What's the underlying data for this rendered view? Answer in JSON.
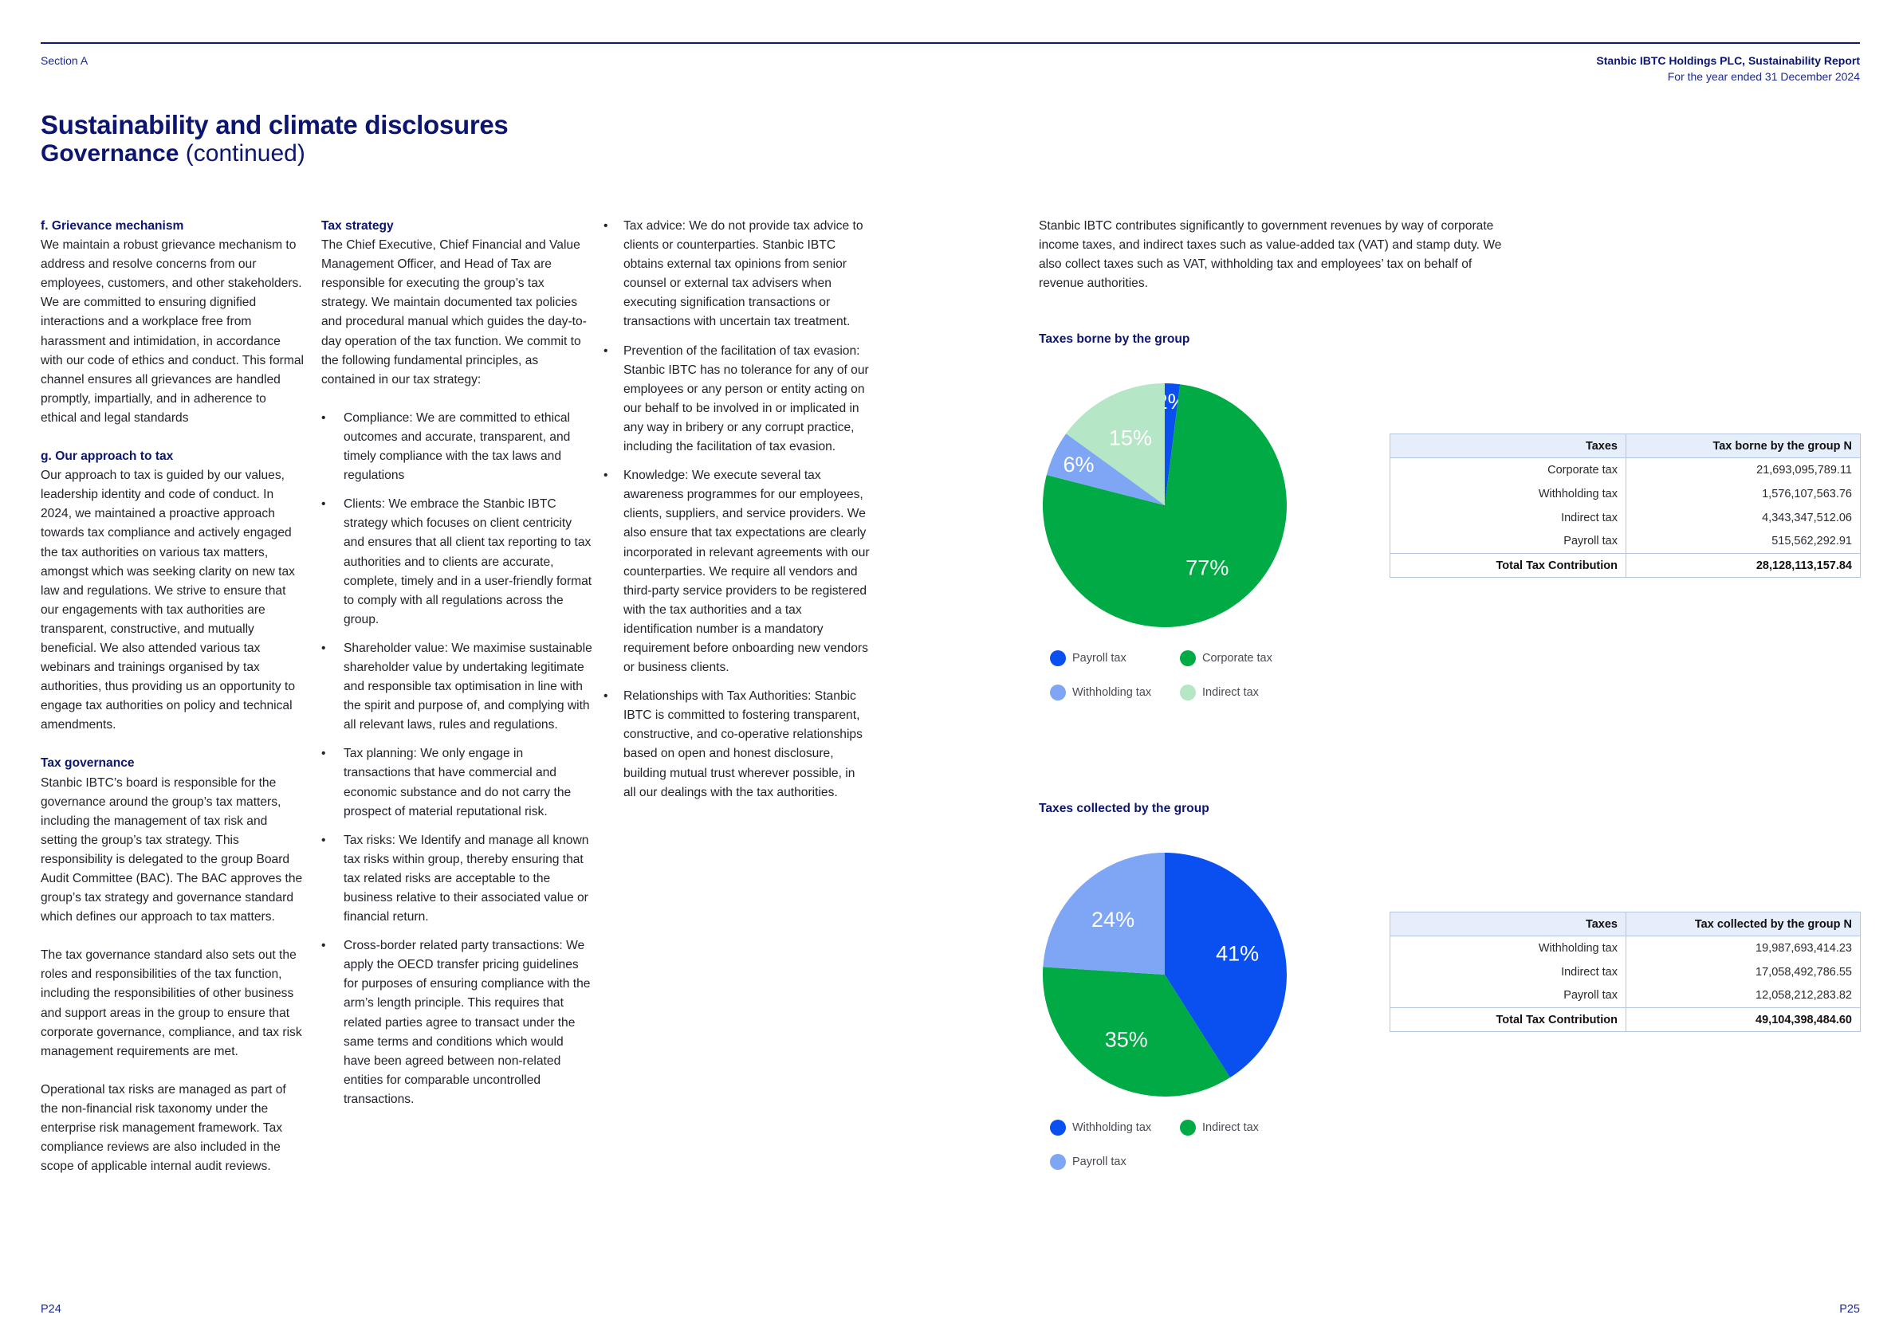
{
  "header": {
    "section": "Section A",
    "report_title": "Stanbic IBTC Holdings PLC, Sustainability Report",
    "report_period": "For the year ended 31 December 2024"
  },
  "title": {
    "main": "Sustainability and climate disclosures",
    "sub_bold": "Governance",
    "sub_light": "(continued)"
  },
  "col1": {
    "grievance_heading": "f. Grievance mechanism",
    "grievance_text": "We maintain a robust grievance mechanism to address and resolve concerns from our employees, customers, and other stakeholders. We are committed to ensuring dignified interactions and a workplace free from harassment and intimidation, in accordance with our code of ethics and conduct. This formal channel ensures all grievances are handled promptly, impartially, and in adherence to ethical and legal standards",
    "approach_heading": "g. Our approach to tax",
    "approach_text": "Our approach to tax is guided by our values, leadership identity and code of conduct. In 2024, we maintained a proactive approach towards tax compliance and actively engaged the tax authorities on various tax matters, amongst which was seeking clarity on new tax law and regulations. We strive to ensure that our engagements with tax authorities are transparent, constructive, and mutually beneficial. We also attended various tax webinars and trainings organised by tax authorities, thus providing us an opportunity to engage tax authorities on policy and technical amendments.",
    "governance_heading": "Tax governance",
    "governance_text1": "Stanbic IBTC’s board is responsible for the governance around the group’s tax matters, including the management of tax risk and setting the group’s tax strategy. This responsibility is delegated to the group Board Audit Committee (BAC). The BAC approves the group’s tax strategy and governance standard which defines our approach to tax matters.",
    "governance_text2": "The tax governance standard also sets out the roles and responsibilities of the tax function, including the responsibilities of other business and support areas in the group to ensure that corporate governance, compliance, and tax risk management requirements are met.",
    "governance_text3": "Operational tax risks are managed as part of the non-financial risk taxonomy under the enterprise risk management framework. Tax compliance reviews are also included in the scope of applicable internal audit reviews."
  },
  "col2": {
    "strategy_heading": "Tax strategy",
    "strategy_text": "The Chief Executive, Chief Financial and Value Management Officer, and Head of Tax are responsible for executing the group’s tax strategy. We maintain documented tax policies and procedural manual which guides the day-to-day operation of the tax function. We commit to the following fundamental principles, as contained in our tax strategy:",
    "bullets": [
      "Compliance: We are committed to ethical outcomes and accurate, transparent, and timely compliance with the tax laws and regulations",
      "Clients: We embrace the Stanbic IBTC strategy which focuses on client centricity and ensures that all client tax reporting to tax authorities and to clients are accurate, complete, timely and in a user-friendly format to comply with all regulations across the group.",
      "Shareholder value: We maximise sustainable shareholder value by undertaking legitimate and responsible tax optimisation in line with the spirit and purpose of, and complying with all relevant laws, rules and regulations.",
      "Tax planning: We only engage in transactions that have commercial and economic substance and do not carry the prospect of material reputational risk.",
      "Tax risks: We Identify and manage all known tax risks within group, thereby ensuring that tax related risks are acceptable to the business relative to their associated value or financial return.",
      "Cross-border related party transactions: We apply the OECD transfer pricing guidelines for purposes of ensuring compliance with the arm’s length principle. This requires that related parties agree to transact under the same terms and conditions which would have been agreed between non-related entities for comparable uncontrolled transactions."
    ]
  },
  "col3": {
    "bullets": [
      "Tax advice: We do not provide tax advice to clients or counterparties. Stanbic IBTC obtains external tax opinions from senior counsel or external tax advisers when executing signification transactions or transactions with uncertain tax treatment.",
      "Prevention of the facilitation of tax evasion: Stanbic IBTC has no tolerance for any of our employees or any person or entity acting on our behalf to be involved in or implicated in any way in bribery or any corrupt practice, including the facilitation of tax evasion.",
      "Knowledge: We execute several tax awareness programmes for our employees, clients, suppliers, and service providers. We also ensure that tax expectations are clearly incorporated in relevant agreements with our counterparties. We require all vendors and third-party service providers to be registered with the tax authorities and a tax identification number is a mandatory requirement before onboarding new vendors or business clients.",
      "Relationships with Tax Authorities: Stanbic IBTC is committed to fostering transparent, constructive, and co-operative relationships based on open and honest disclosure, building mutual trust wherever possible, in all our dealings with the tax authorities."
    ]
  },
  "intro_text": "Stanbic IBTC contributes significantly to government revenues by way of corporate income taxes, and indirect taxes such as value-added tax (VAT) and stamp duty. We also collect taxes such as VAT, withholding tax and employees’ tax on behalf of revenue authorities.",
  "chart_data": [
    {
      "type": "pie",
      "title": "Taxes borne by the group",
      "slices": [
        {
          "label": "Payroll tax",
          "value": 2,
          "color": "#0a4ff0",
          "text": "2%"
        },
        {
          "label": "Corporate tax",
          "value": 77,
          "color": "#00aa44",
          "text": "77%"
        },
        {
          "label": "Withholding tax",
          "value": 6,
          "color": "#7ea6f5",
          "text": "6%"
        },
        {
          "label": "Indirect tax",
          "value": 15,
          "color": "#b5e6c5",
          "text": "15%"
        }
      ]
    },
    {
      "type": "pie",
      "title": "Taxes collected by the group",
      "slices": [
        {
          "label": "Withholding tax",
          "value": 41,
          "color": "#0a4ff0",
          "text": "41%"
        },
        {
          "label": "Indirect tax",
          "value": 35,
          "color": "#00aa44",
          "text": "35%"
        },
        {
          "label": "Payroll tax",
          "value": 24,
          "color": "#7ea6f5",
          "text": "24%"
        }
      ]
    }
  ],
  "table1": {
    "headers": [
      "Taxes",
      "Tax borne by the group N"
    ],
    "rows": [
      [
        "Corporate tax",
        "21,693,095,789.11"
      ],
      [
        "Withholding tax",
        "1,576,107,563.76"
      ],
      [
        "Indirect tax",
        "4,343,347,512.06"
      ],
      [
        "Payroll tax",
        "515,562,292.91"
      ]
    ],
    "total": [
      "Total Tax Contribution",
      "28,128,113,157.84"
    ]
  },
  "table2": {
    "headers": [
      "Taxes",
      "Tax collected by the group N"
    ],
    "rows": [
      [
        "Withholding tax",
        "19,987,693,414.23"
      ],
      [
        "Indirect tax",
        "17,058,492,786.55"
      ],
      [
        "Payroll tax",
        "12,058,212,283.82"
      ]
    ],
    "total": [
      "Total Tax Contribution",
      "49,104,398,484.60"
    ]
  },
  "footer": {
    "page_left": "P24",
    "page_right": "P25"
  }
}
